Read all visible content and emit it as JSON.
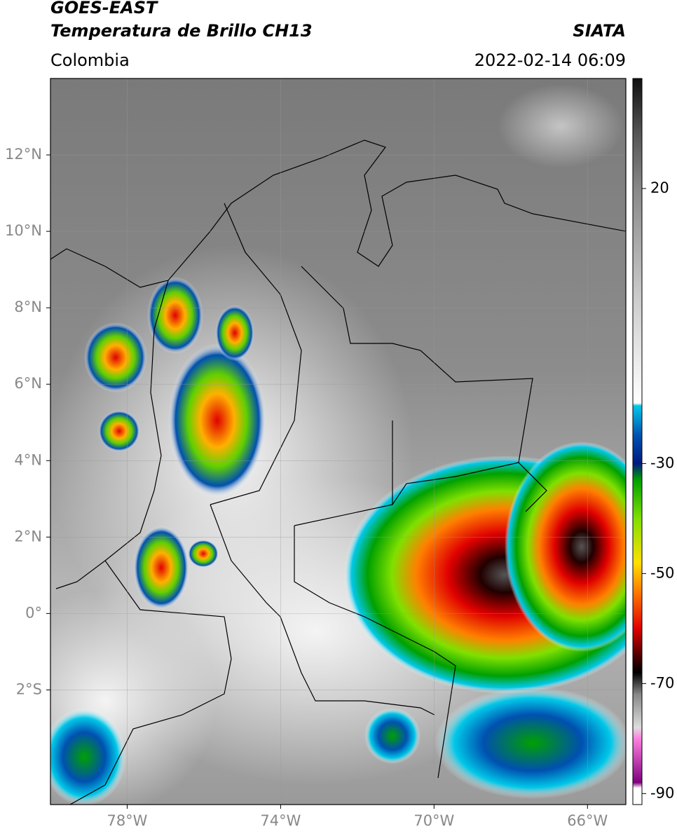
{
  "header": {
    "title": "GOES-EAST",
    "subtitle": "Temperatura de Brillo CH13",
    "region": "Colombia",
    "source": "SIATA",
    "datetime": "2022-02-14 06:09"
  },
  "map": {
    "lonlim": [
      -80,
      -65
    ],
    "latlim": [
      -5,
      14
    ],
    "lon_ticks": [
      {
        "value": -78,
        "label": "78°W"
      },
      {
        "value": -74,
        "label": "74°W"
      },
      {
        "value": -70,
        "label": "70°W"
      },
      {
        "value": -66,
        "label": "66°W"
      }
    ],
    "lat_ticks": [
      {
        "value": 12,
        "label": "12°N"
      },
      {
        "value": 10,
        "label": "10°N"
      },
      {
        "value": 8,
        "label": "8°N"
      },
      {
        "value": 6,
        "label": "6°N"
      },
      {
        "value": 4,
        "label": "4°N"
      },
      {
        "value": 2,
        "label": "2°N"
      },
      {
        "value": 0,
        "label": "0°"
      },
      {
        "value": -2,
        "label": "2°S"
      }
    ],
    "grid": true
  },
  "colorbar": {
    "lim": [
      -92,
      40
    ],
    "ticks": [
      20,
      -30,
      -50,
      -70,
      -90
    ],
    "stops": [
      {
        "value": 40,
        "color": "#111111"
      },
      {
        "value": 30,
        "color": "#555555"
      },
      {
        "value": 20,
        "color": "#888888"
      },
      {
        "value": 0,
        "color": "#cccccc"
      },
      {
        "value": -19,
        "color": "#ffffff"
      },
      {
        "value": -19.5,
        "color": "#00c8e8"
      },
      {
        "value": -25,
        "color": "#0050b0"
      },
      {
        "value": -30,
        "color": "#001a80"
      },
      {
        "value": -33,
        "color": "#00a000"
      },
      {
        "value": -40,
        "color": "#80e000"
      },
      {
        "value": -48,
        "color": "#ffe000"
      },
      {
        "value": -53,
        "color": "#ff8000"
      },
      {
        "value": -60,
        "color": "#e00000"
      },
      {
        "value": -66,
        "color": "#300000"
      },
      {
        "value": -68,
        "color": "#000000"
      },
      {
        "value": -72,
        "color": "#888888"
      },
      {
        "value": -78,
        "color": "#dddddd"
      },
      {
        "value": -80,
        "color": "#ff80e0"
      },
      {
        "value": -88,
        "color": "#800080"
      },
      {
        "value": -89,
        "color": "#ffffff"
      }
    ]
  }
}
